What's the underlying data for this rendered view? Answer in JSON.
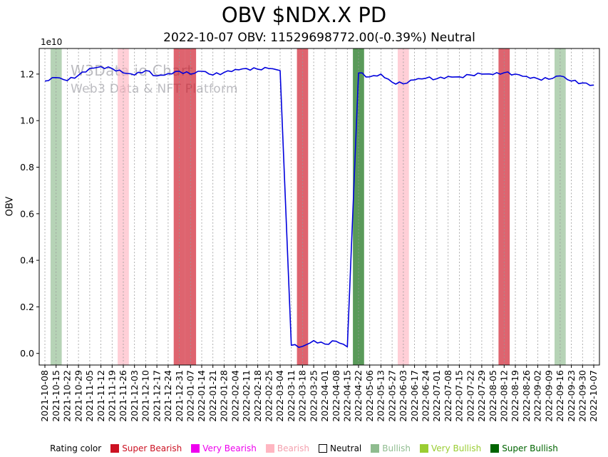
{
  "chart_data": {
    "type": "line",
    "title": "OBV $NDX.X PD",
    "subtitle": "2022-10-07 OBV: 11529698772.00(-0.39%) Neutral",
    "ylabel": "OBV",
    "y_offset_label": "1e10",
    "watermark_line1": "W3Data.io Chart",
    "watermark_line2": "Web3 Data & NFT Platform",
    "line_color": "#0000dd",
    "grid": "vertical-dashed",
    "legend_position": "bottom",
    "ylim": [
      -0.05,
      1.31
    ],
    "yticks": [
      0.0,
      0.2,
      0.4,
      0.6,
      0.8,
      1.0,
      1.2
    ],
    "x": [
      "2021-10-08",
      "2021-10-15",
      "2021-10-22",
      "2021-10-29",
      "2021-11-05",
      "2021-11-12",
      "2021-11-19",
      "2021-11-26",
      "2021-12-03",
      "2021-12-10",
      "2021-12-17",
      "2021-12-24",
      "2021-12-31",
      "2022-01-07",
      "2022-01-14",
      "2022-01-21",
      "2022-01-28",
      "2022-02-04",
      "2022-02-11",
      "2022-02-18",
      "2022-02-25",
      "2022-03-04",
      "2022-03-11",
      "2022-03-18",
      "2022-03-25",
      "2022-04-01",
      "2022-04-08",
      "2022-04-15",
      "2022-04-22",
      "2022-05-06",
      "2022-05-13",
      "2022-05-27",
      "2022-06-03",
      "2022-06-17",
      "2022-06-24",
      "2022-07-01",
      "2022-07-08",
      "2022-07-15",
      "2022-07-22",
      "2022-07-29",
      "2022-08-05",
      "2022-08-12",
      "2022-08-19",
      "2022-08-26",
      "2022-09-02",
      "2022-09-09",
      "2022-09-16",
      "2022-09-23",
      "2022-09-30",
      "2022-10-07"
    ],
    "values": [
      1.17,
      1.185,
      1.172,
      1.195,
      1.225,
      1.232,
      1.224,
      1.205,
      1.196,
      1.215,
      1.192,
      1.202,
      1.212,
      1.2,
      1.212,
      1.196,
      1.207,
      1.22,
      1.224,
      1.221,
      1.224,
      1.215,
      0.035,
      0.03,
      0.055,
      0.04,
      0.052,
      0.028,
      1.205,
      1.188,
      1.2,
      1.165,
      1.158,
      1.175,
      1.182,
      1.18,
      1.19,
      1.188,
      1.196,
      1.2,
      1.198,
      1.206,
      1.2,
      1.19,
      1.18,
      1.178,
      1.192,
      1.17,
      1.162,
      1.153
    ],
    "bands": [
      {
        "date": "2021-10-15",
        "rating": "Bullish"
      },
      {
        "date": "2021-11-26",
        "rating": "Bearish"
      },
      {
        "date": "2021-12-31",
        "rating": "Super Bearish"
      },
      {
        "date": "2022-01-07",
        "rating": "Super Bearish"
      },
      {
        "date": "2022-03-18",
        "rating": "Super Bearish"
      },
      {
        "date": "2022-04-22",
        "rating": "Super Bullish"
      },
      {
        "date": "2022-06-03",
        "rating": "Bearish"
      },
      {
        "date": "2022-08-12",
        "rating": "Super Bearish"
      },
      {
        "date": "2022-09-16",
        "rating": "Bullish"
      }
    ],
    "rating_colors": {
      "Super Bearish": "#cc1122",
      "Very Bearish": "#ee00ee",
      "Bearish": "#ffb6c1",
      "Neutral": "#ffffff",
      "Bullish": "#8fbc8f",
      "Very Bullish": "#9acd32",
      "Super Bullish": "#006400"
    }
  },
  "legend": {
    "label": "Rating color",
    "items": [
      {
        "label": "Super Bearish",
        "color": "#cc1122",
        "text_color": "#cc1122",
        "border": false
      },
      {
        "label": "Very Bearish",
        "color": "#ee00ee",
        "text_color": "#ee00ee",
        "border": false
      },
      {
        "label": "Bearish",
        "color": "#ffb6c1",
        "text_color": "#f4a0ae",
        "border": false
      },
      {
        "label": "Neutral",
        "color": "#ffffff",
        "text_color": "#000000",
        "border": true
      },
      {
        "label": "Bullish",
        "color": "#8fbc8f",
        "text_color": "#8fbc8f",
        "border": false
      },
      {
        "label": "Very Bullish",
        "color": "#9acd32",
        "text_color": "#9acd32",
        "border": false
      },
      {
        "label": "Super Bullish",
        "color": "#006400",
        "text_color": "#006400",
        "border": false
      }
    ]
  }
}
